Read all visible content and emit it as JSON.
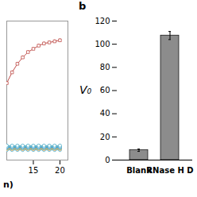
{
  "chart_data": [
    {
      "type": "line",
      "x": [
        10,
        11,
        12,
        13,
        14,
        15,
        16,
        17,
        18,
        19,
        20
      ],
      "series": [
        {
          "color": "#c0504d",
          "marker": "square",
          "values": [
            72,
            82,
            90,
            96,
            101,
            104,
            107,
            109,
            110,
            111,
            112
          ],
          "errors": [
            1.5,
            1.5,
            1.5,
            1.5,
            1.5,
            1.5,
            1.5,
            1.5,
            1.5,
            1.5,
            1.5
          ]
        },
        {
          "color": "#4bacc6",
          "marker": "circle",
          "values": [
            13.5,
            13.5,
            13.5,
            13.5,
            13.5,
            13.5,
            13.5,
            13.5,
            13.5,
            13.5,
            13.5
          ],
          "errors": [
            0.3,
            0.3,
            0.3,
            0.3,
            0.3,
            0.3,
            0.3,
            0.3,
            0.3,
            0.3,
            0.3
          ]
        },
        {
          "color": "#4bacc6",
          "marker": "circle",
          "values": [
            12.5,
            12.5,
            12.5,
            12.5,
            12.5,
            12.5,
            12.5,
            12.5,
            12.5,
            12.5,
            12.5
          ],
          "errors": [
            0.3,
            0.3,
            0.3,
            0.3,
            0.3,
            0.3,
            0.3,
            0.3,
            0.3,
            0.3,
            0.3
          ]
        },
        {
          "color": "#548dd4",
          "marker": "circle",
          "values": [
            12.0,
            12.0,
            12.0,
            12.0,
            12.0,
            12.0,
            12.0,
            12.0,
            12.0,
            12.0,
            12.0
          ],
          "errors": [
            0.3,
            0.3,
            0.3,
            0.3,
            0.3,
            0.3,
            0.3,
            0.3,
            0.3,
            0.3,
            0.3
          ]
        },
        {
          "color": "#4bacc6",
          "marker": "circle",
          "values": [
            11.5,
            11.5,
            11.5,
            11.5,
            11.5,
            11.5,
            11.5,
            11.5,
            11.5,
            11.5,
            11.5
          ],
          "errors": [
            0.3,
            0.3,
            0.3,
            0.3,
            0.3,
            0.3,
            0.3,
            0.3,
            0.3,
            0.3,
            0.3
          ]
        },
        {
          "color": "#9bbb59",
          "marker": "circle",
          "values": [
            11.0,
            11.0,
            11.0,
            11.0,
            11.0,
            11.0,
            11.0,
            11.0,
            11.0,
            11.0,
            11.0
          ],
          "errors": [
            0.3,
            0.3,
            0.3,
            0.3,
            0.3,
            0.3,
            0.3,
            0.3,
            0.3,
            0.3,
            0.3
          ]
        },
        {
          "color": "#f79646",
          "marker": "circle",
          "values": [
            10.5,
            10.5,
            10.5,
            10.5,
            10.5,
            10.5,
            10.5,
            10.5,
            10.5,
            10.5,
            10.5
          ],
          "errors": [
            0.3,
            0.3,
            0.3,
            0.3,
            0.3,
            0.3,
            0.3,
            0.3,
            0.3,
            0.3,
            0.3
          ]
        },
        {
          "color": "#4bacc6",
          "marker": "circle",
          "values": [
            9.5,
            9.5,
            9.5,
            9.5,
            9.5,
            9.5,
            9.5,
            9.5,
            9.5,
            9.5,
            9.5
          ],
          "errors": [
            0.3,
            0.3,
            0.3,
            0.3,
            0.3,
            0.3,
            0.3,
            0.3,
            0.3,
            0.3,
            0.3
          ]
        }
      ],
      "xlim": [
        10,
        21.5
      ],
      "xticks": [
        15,
        20
      ],
      "ylim": [
        0,
        130
      ],
      "yticks": [],
      "tick_labels": "x",
      "annotations": [
        "n)"
      ]
    },
    {
      "type": "bar",
      "title": "b",
      "categories": [
        "Blank",
        "RNase H D"
      ],
      "values": [
        8.5,
        107.5
      ],
      "errors": [
        1.0,
        3.5
      ],
      "color": "#8c8c8c",
      "ylabel": "V₀",
      "ylim": [
        0,
        120
      ],
      "yticks": [
        0,
        20,
        40,
        60,
        80,
        100,
        120
      ]
    }
  ]
}
